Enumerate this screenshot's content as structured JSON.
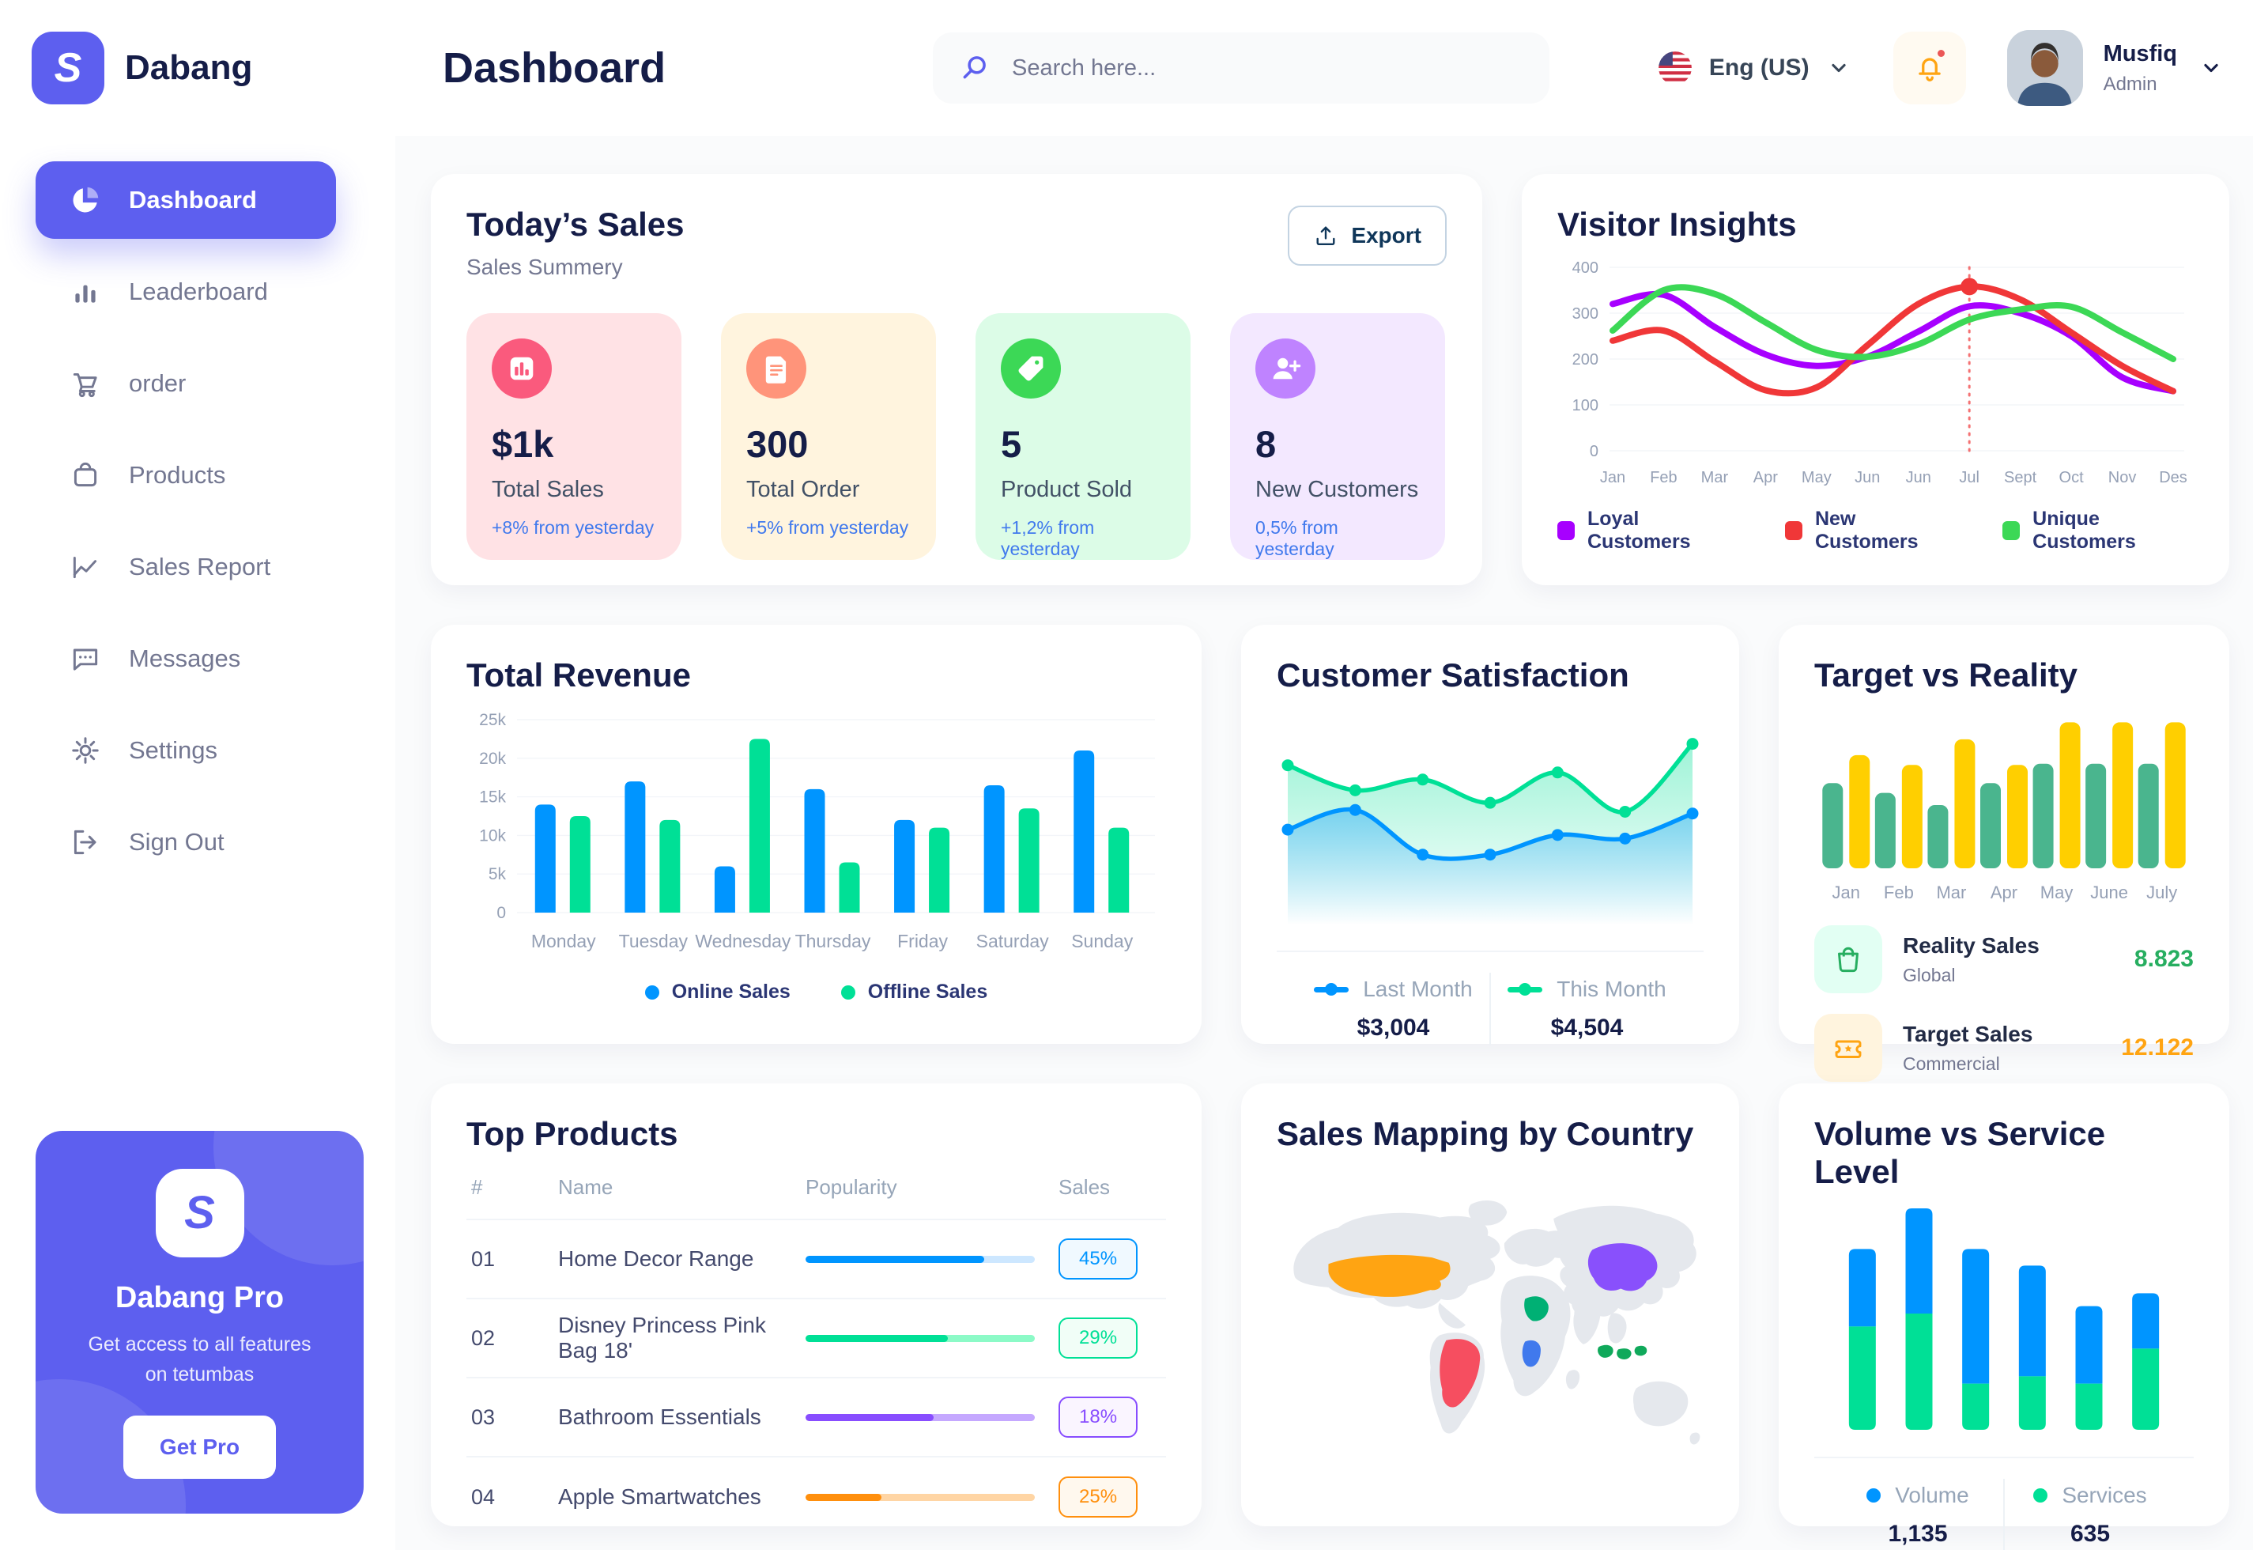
{
  "theme": {
    "primary": "#5D5FEF",
    "heading": "#151D48",
    "muted": "#737791",
    "page_bg": "#FAFBFC",
    "delta_blue": "#4079ED"
  },
  "brand": {
    "name": "Dabang",
    "logo_glyph": "S"
  },
  "header": {
    "title": "Dashboard",
    "search_placeholder": "Search here...",
    "language": "Eng (US)",
    "user": {
      "name": "Musfiq",
      "role": "Admin"
    }
  },
  "sidebar": {
    "items": [
      {
        "label": "Dashboard",
        "icon": "pie-chart-icon",
        "active": true
      },
      {
        "label": "Leaderboard",
        "icon": "leaderboard-icon",
        "active": false
      },
      {
        "label": "order",
        "icon": "cart-icon",
        "active": false
      },
      {
        "label": "Products",
        "icon": "bag-icon",
        "active": false
      },
      {
        "label": "Sales Report",
        "icon": "sales-report-icon",
        "active": false
      },
      {
        "label": "Messages",
        "icon": "message-icon",
        "active": false
      },
      {
        "label": "Settings",
        "icon": "gear-icon",
        "active": false
      },
      {
        "label": "Sign Out",
        "icon": "sign-out-icon",
        "active": false
      }
    ],
    "promo": {
      "title": "Dabang Pro",
      "subtitle": "Get access to all features on tetumbas",
      "button_label": "Get Pro"
    }
  },
  "todays_sales": {
    "title": "Today’s Sales",
    "subtitle": "Sales Summery",
    "export_label": "Export",
    "cards": [
      {
        "value": "$1k",
        "label": "Total Sales",
        "delta": "+8% from yesterday",
        "bg": "#FFE2E5",
        "icon_bg": "#FA5A7D",
        "icon": "stat-chart-icon"
      },
      {
        "value": "300",
        "label": "Total Order",
        "delta": "+5% from yesterday",
        "bg": "#FFF4DE",
        "icon_bg": "#FF947A",
        "icon": "stat-order-icon"
      },
      {
        "value": "5",
        "label": "Product Sold",
        "delta": "+1,2% from yesterday",
        "bg": "#DCFCE7",
        "icon_bg": "#3CD856",
        "icon": "stat-tag-icon"
      },
      {
        "value": "8",
        "label": "New Customers",
        "delta": "0,5% from yesterday",
        "bg": "#F3E8FF",
        "icon_bg": "#BF83FF",
        "icon": "stat-user-icon"
      }
    ]
  },
  "top_products": {
    "title": "Top Products",
    "headers": [
      "#",
      "Name",
      "Popularity",
      "Sales"
    ],
    "rows": [
      {
        "id": "01",
        "name": "Home Decor Range",
        "popularity": 78,
        "sales": "45%",
        "color": "#0095FF",
        "track": "#CDE7FF",
        "badge_bg": "#F0F9FF"
      },
      {
        "id": "02",
        "name": "Disney Princess Pink Bag 18'",
        "popularity": 62,
        "sales": "29%",
        "color": "#00E096",
        "track": "#8CFAC7",
        "badge_bg": "#F1FEF7"
      },
      {
        "id": "03",
        "name": "Bathroom Essentials",
        "popularity": 56,
        "sales": "18%",
        "color": "#884DFF",
        "track": "#C5A8FF",
        "badge_bg": "#FAF5FF"
      },
      {
        "id": "04",
        "name": "Apple Smartwatches",
        "popularity": 33,
        "sales": "25%",
        "color": "#FF8F0D",
        "track": "#FFD5A4",
        "badge_bg": "#FFF8EE"
      }
    ]
  },
  "sales_map": {
    "title": "Sales Mapping by Country",
    "countries": [
      {
        "name": "United States",
        "color": "#FFA412"
      },
      {
        "name": "Brazil",
        "color": "#F64E60"
      },
      {
        "name": "Saudi Arabia",
        "color": "#00B074"
      },
      {
        "name": "DR Congo",
        "color": "#4079ED"
      },
      {
        "name": "China",
        "color": "#8950FC"
      },
      {
        "name": "Indonesia",
        "color": "#10A95B"
      }
    ]
  },
  "chart_data": [
    {
      "id": "visitor_insights",
      "type": "line",
      "title": "Visitor Insights",
      "x_labels": [
        "Jan",
        "Feb",
        "Mar",
        "Apr",
        "May",
        "Jun",
        "Jun",
        "Jul",
        "Sept",
        "Oct",
        "Nov",
        "Des"
      ],
      "ylim": [
        0,
        400
      ],
      "yticks": [
        0,
        100,
        200,
        300,
        400
      ],
      "grid": true,
      "legend_position": "bottom",
      "series": [
        {
          "name": "Loyal Customers",
          "color": "#A700FF",
          "values": [
            320,
            340,
            270,
            210,
            185,
            205,
            260,
            315,
            300,
            250,
            160,
            130
          ]
        },
        {
          "name": "New Customers",
          "color": "#F03738",
          "values": [
            240,
            262,
            195,
            132,
            138,
            230,
            320,
            358,
            330,
            258,
            185,
            130
          ]
        },
        {
          "name": "Unique Customers",
          "color": "#3CD856",
          "values": [
            262,
            350,
            342,
            280,
            220,
            205,
            232,
            286,
            308,
            314,
            258,
            200
          ]
        }
      ],
      "marker": {
        "series": 1,
        "x_index": 7
      }
    },
    {
      "id": "total_revenue",
      "type": "bar",
      "title": "Total Revenue",
      "categories": [
        "Monday",
        "Tuesday",
        "Wednesday",
        "Thursday",
        "Friday",
        "Saturday",
        "Sunday"
      ],
      "ylim": [
        0,
        25
      ],
      "ytick_labels": [
        "0",
        "5k",
        "10k",
        "15k",
        "20k",
        "25k"
      ],
      "unit": "k",
      "grid": true,
      "legend_position": "bottom",
      "series": [
        {
          "name": "Online Sales",
          "color": "#0095FF",
          "values": [
            14,
            17,
            6,
            16,
            12,
            16.5,
            21
          ]
        },
        {
          "name": "Offline Sales",
          "color": "#00E096",
          "values": [
            12.5,
            12,
            22.5,
            6.5,
            11,
            13.5,
            11
          ]
        }
      ]
    },
    {
      "id": "customer_satisfaction",
      "type": "area",
      "title": "Customer Satisfaction",
      "ylim": [
        0,
        100
      ],
      "legend_position": "bottom",
      "series": [
        {
          "name": "Last Month",
          "total": "$3,004",
          "color": "#0095FF",
          "values": [
            42,
            53,
            28,
            28,
            39,
            37,
            51
          ]
        },
        {
          "name": "This Month",
          "total": "$4,504",
          "color": "#00E096",
          "values": [
            78,
            64,
            70,
            57,
            74,
            52,
            90
          ]
        }
      ]
    },
    {
      "id": "target_vs_reality",
      "type": "bar",
      "title": "Target vs Reality",
      "categories": [
        "Jan",
        "Feb",
        "Mar",
        "Apr",
        "May",
        "June",
        "July"
      ],
      "ylim": [
        0,
        13
      ],
      "legend_position": "bottom",
      "series": [
        {
          "name": "Reality Sales",
          "subtitle": "Global",
          "color": "#4AB58E",
          "value_label": "8.823",
          "value_color": "#27AE60",
          "icon": "reality-bag-icon",
          "icon_bg": "#E2FFF3",
          "values": [
            7,
            6.2,
            5.2,
            7,
            8.6,
            8.6,
            8.6
          ]
        },
        {
          "name": "Target Sales",
          "subtitle": "Commercial",
          "color": "#FFCF00",
          "value_label": "12.122",
          "value_color": "#FFA412",
          "icon": "ticket-icon",
          "icon_bg": "#FFF4DE",
          "values": [
            9.3,
            8.5,
            10.6,
            8.5,
            12,
            12,
            12
          ]
        }
      ]
    },
    {
      "id": "volume_vs_service",
      "type": "stacked-bar",
      "title": "Volume vs Service Level",
      "legend_position": "bottom",
      "series": [
        {
          "name": "Volume",
          "total": "1,135",
          "color": "#0095FF",
          "values": [
            42,
            57,
            73,
            60,
            42,
            30
          ]
        },
        {
          "name": "Services",
          "total": "635",
          "color": "#00E096",
          "values": [
            56,
            63,
            25,
            29,
            25,
            44
          ]
        }
      ]
    }
  ]
}
